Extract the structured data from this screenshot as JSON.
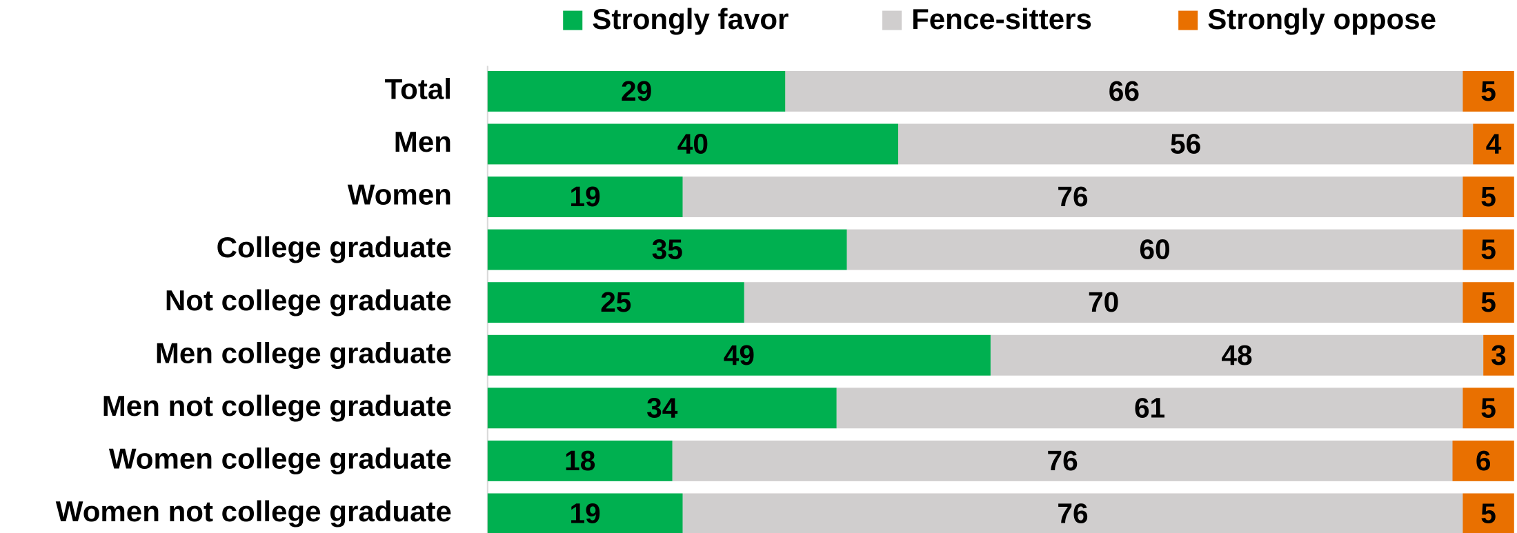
{
  "chart_data": {
    "type": "stacked_barh",
    "categories": [
      "Total",
      "Men",
      "Women",
      "College graduate",
      "Not college graduate",
      "Men college graduate",
      "Men not college graduate",
      "Women college graduate",
      "Women not college graduate"
    ],
    "series": [
      {
        "name": "Strongly favor",
        "color": "#00b050",
        "values": [
          29,
          40,
          19,
          35,
          25,
          49,
          34,
          18,
          19
        ]
      },
      {
        "name": "Fence-sitters",
        "color": "#d0cece",
        "values": [
          66,
          56,
          76,
          60,
          70,
          48,
          61,
          76,
          76
        ]
      },
      {
        "name": "Strongly oppose",
        "color": "#e97000",
        "values": [
          5,
          4,
          5,
          5,
          5,
          3,
          5,
          6,
          5
        ]
      }
    ],
    "xlim": [
      0,
      100
    ],
    "legend": "top"
  }
}
